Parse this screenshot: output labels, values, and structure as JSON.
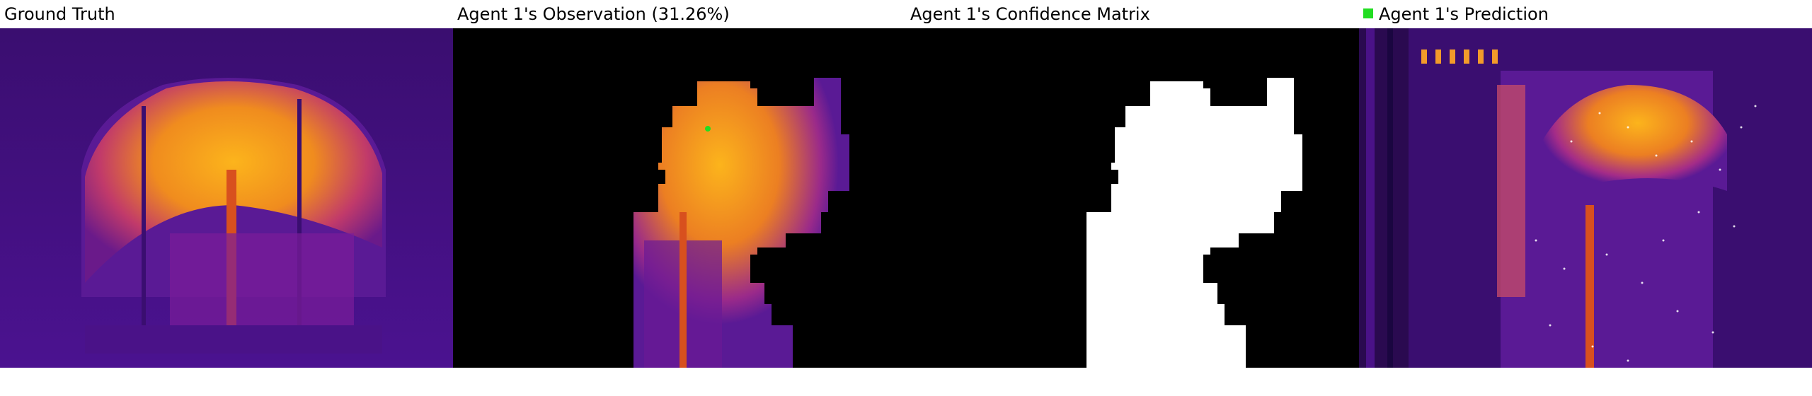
{
  "panels": [
    {
      "title": "Ground Truth"
    },
    {
      "title": "Agent 1's Observation (31.26%)"
    },
    {
      "title": "Agent 1's Confidence Matrix"
    },
    {
      "title": "Agent 1's Prediction",
      "legend_color": "#22dd22"
    }
  ],
  "colors": {
    "background": "#ffffff",
    "inferno_dark": "#2a0a55",
    "inferno_mid": "#8a1fa0",
    "inferno_hot": "#f7a81b",
    "mask_black": "#000000",
    "mask_white": "#ffffff",
    "marker_green": "#22dd22"
  }
}
